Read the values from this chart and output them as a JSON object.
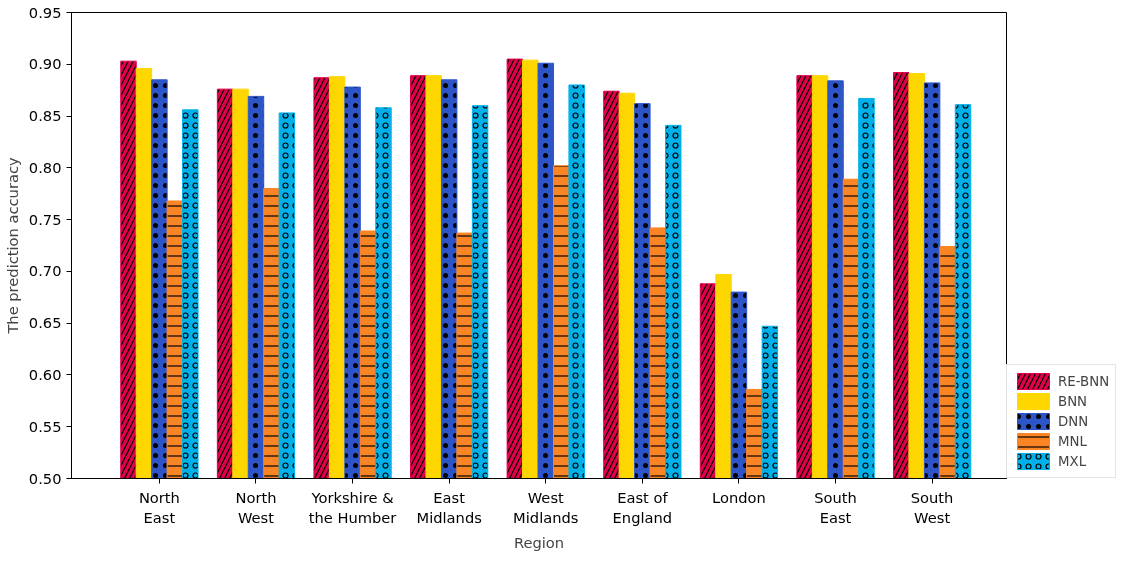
{
  "chart_data": {
    "type": "bar",
    "xlabel": "Region",
    "ylabel": "The prediction accuracy",
    "categories": [
      "North\nEast",
      "North\nWest",
      "Yorkshire &\nthe Humber",
      "East\nMidlands",
      "West\nMidlands",
      "East of\nEngland",
      "London",
      "South\nEast",
      "South\nWest"
    ],
    "series": [
      {
        "name": "RE-BNN",
        "color": "#e0004a",
        "values": [
          0.903,
          0.876,
          0.887,
          0.889,
          0.905,
          0.874,
          0.688,
          0.889,
          0.892
        ]
      },
      {
        "name": "BNN",
        "color": "#ffd700",
        "values": [
          0.896,
          0.876,
          0.888,
          0.889,
          0.904,
          0.872,
          0.697,
          0.889,
          0.891
        ]
      },
      {
        "name": "DNN",
        "color": "#2e55c8",
        "values": [
          0.885,
          0.869,
          0.878,
          0.885,
          0.901,
          0.862,
          0.68,
          0.884,
          0.882
        ]
      },
      {
        "name": "MNL",
        "color": "#fb8524",
        "values": [
          0.768,
          0.78,
          0.739,
          0.737,
          0.802,
          0.742,
          0.586,
          0.789,
          0.724
        ]
      },
      {
        "name": "MXL",
        "color": "#00b0e8",
        "values": [
          0.856,
          0.853,
          0.858,
          0.86,
          0.88,
          0.841,
          0.647,
          0.867,
          0.861
        ]
      }
    ],
    "ylim": [
      0.5,
      0.95
    ],
    "yticks": [
      {
        "value": 0.5,
        "label": "0.50"
      },
      0.55,
      {
        "value": 0.6,
        "label": "0.60"
      },
      0.65,
      {
        "value": 0.7,
        "label": "0.70"
      },
      0.75,
      {
        "value": 0.8,
        "label": "0.80"
      },
      0.85,
      {
        "value": 0.9,
        "label": "0.90"
      },
      0.95
    ],
    "legend": "bottom right",
    "grid": false
  }
}
